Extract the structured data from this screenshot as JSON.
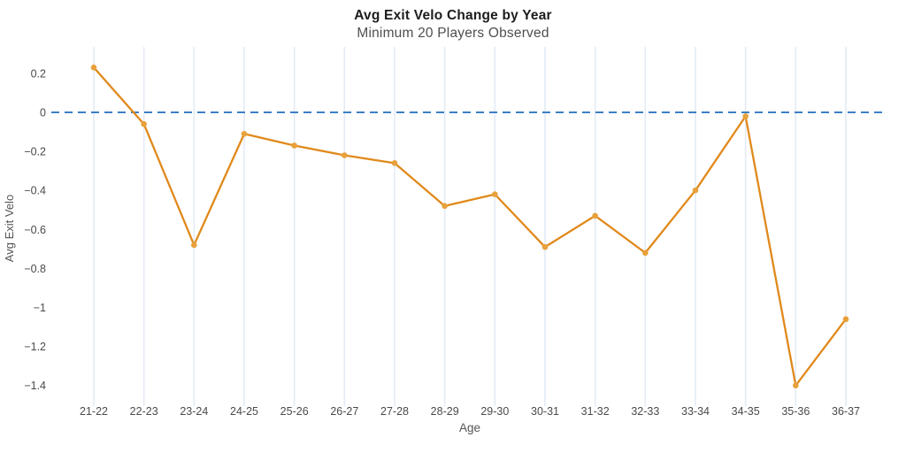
{
  "header": {
    "title": "Avg Exit Velo Change by Year",
    "subtitle": "Minimum 20 Players Observed"
  },
  "chart_data": {
    "type": "line",
    "title": "Avg Exit Velo Change by Year",
    "subtitle": "Minimum 20 Players Observed",
    "xlabel": "Age",
    "ylabel": "Avg Exit Velo",
    "categories": [
      "21-22",
      "22-23",
      "23-24",
      "24-25",
      "25-26",
      "26-27",
      "27-28",
      "28-29",
      "29-30",
      "30-31",
      "31-32",
      "32-33",
      "33-34",
      "34-35",
      "35-36",
      "36-37"
    ],
    "values": [
      0.23,
      -0.06,
      -0.68,
      -0.11,
      -0.17,
      -0.22,
      -0.26,
      -0.48,
      -0.42,
      -0.69,
      -0.53,
      -0.72,
      -0.4,
      -0.02,
      -1.4,
      -1.06
    ],
    "yticks": [
      0.2,
      0,
      -0.2,
      -0.4,
      -0.6,
      -0.8,
      -1,
      -1.2,
      -1.4
    ],
    "ylim": [
      -1.49,
      0.34
    ],
    "zero_line": {
      "value": 0,
      "style": "dashed"
    },
    "grid": "vertical-only",
    "legend": "none",
    "colors": {
      "line": "#E0891B",
      "marker": "#E8A13C",
      "zero_line": "#3D7EC6",
      "gridline": "#E3EBF6",
      "tick_label": "#4a4a4a",
      "axis_title": "#545454",
      "title": "#1c1c1c",
      "subtitle": "#4f4f4f"
    }
  }
}
